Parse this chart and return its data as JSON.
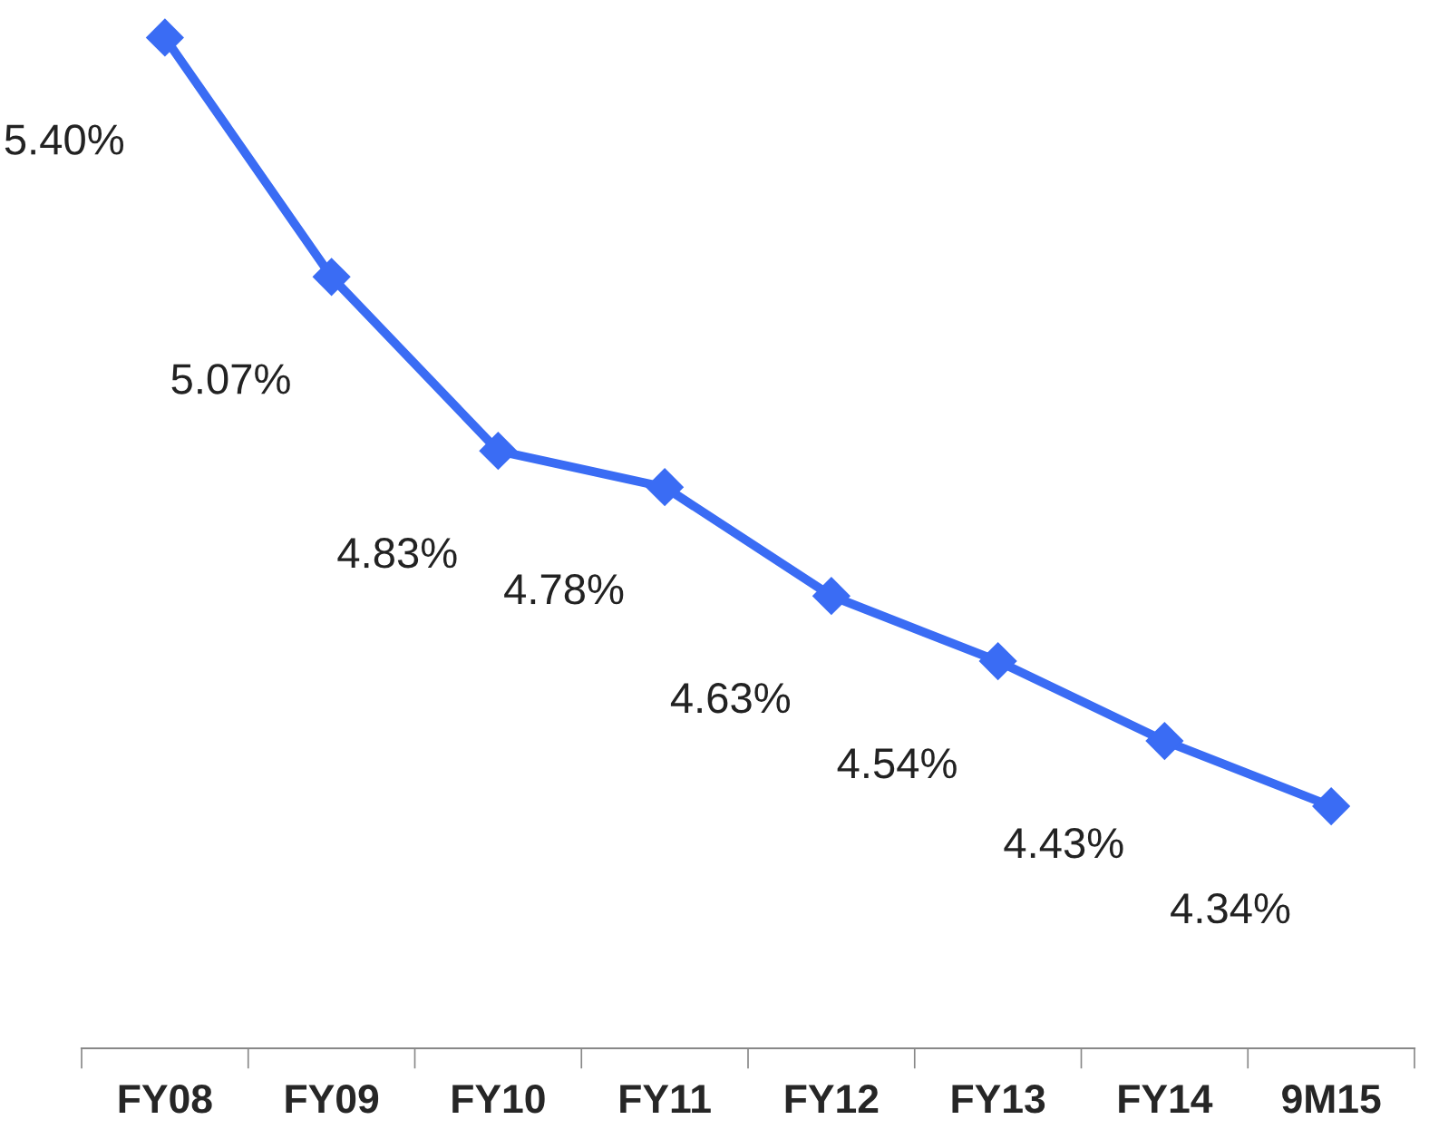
{
  "chart_data": {
    "type": "line",
    "categories": [
      "FY08",
      "FY09",
      "FY10",
      "FY11",
      "FY12",
      "FY13",
      "FY14",
      "9M15"
    ],
    "series": [
      {
        "color": "#3a6cf4",
        "values": [
          5.4,
          5.07,
          4.83,
          4.78,
          4.63,
          4.54,
          4.43,
          4.34
        ],
        "value_labels": [
          "5.40%",
          "5.07%",
          "4.83%",
          "4.78%",
          "4.63%",
          "4.54%",
          "4.43%",
          "4.34%"
        ]
      }
    ],
    "marker": "diamond",
    "line_style": "solid",
    "grid": false,
    "legend": false,
    "tick_labels": "x"
  }
}
